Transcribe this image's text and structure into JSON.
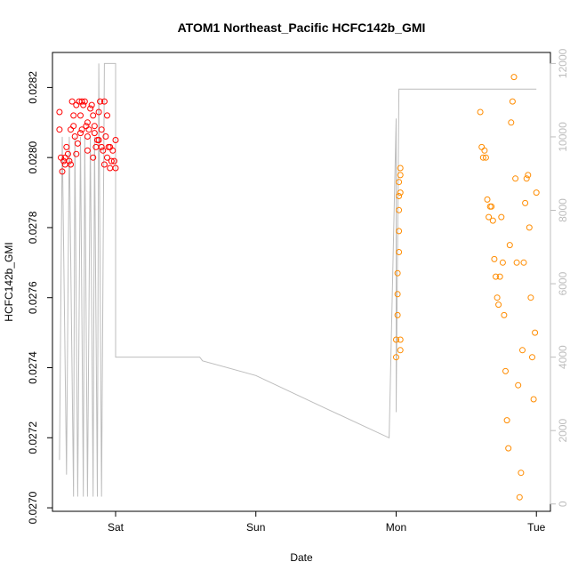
{
  "chart_data": {
    "type": "scatter",
    "title": "ATOM1 Northeast_Pacific HCFC142b_GMI",
    "xlabel": "Date",
    "ylabel": "HCFC142b_GMI",
    "x_ticks": [
      "Sat",
      "Sun",
      "Mon",
      "Tue"
    ],
    "y_ticks": [
      "0.0270",
      "0.0272",
      "0.0274",
      "0.0276",
      "0.0278",
      "0.0280",
      "0.0282"
    ],
    "y_ticks_right": [
      "0",
      "2000",
      "4000",
      "6000",
      "8000",
      "10000",
      "12000"
    ],
    "xlim_days": [
      -0.45,
      3.1
    ],
    "ylim": [
      0.02699,
      0.0283
    ],
    "ylim_right": [
      -200,
      12300
    ],
    "grid": false,
    "colors": {
      "series1": "#ff0000",
      "series2": "#ff8c00",
      "altitude": "#bdbdbd",
      "axis": "#000000"
    },
    "series": [
      {
        "color": "#ff0000",
        "x_days": [
          -0.4,
          -0.39,
          -0.38,
          -0.37,
          -0.36,
          -0.35,
          -0.34,
          -0.33,
          -0.32,
          -0.31,
          -0.3,
          -0.29,
          -0.28,
          -0.27,
          -0.26,
          -0.25,
          -0.24,
          -0.23,
          -0.22,
          -0.21,
          -0.2,
          -0.19,
          -0.18,
          -0.17,
          -0.16,
          -0.15,
          -0.14,
          -0.13,
          -0.12,
          -0.11,
          -0.1,
          -0.09,
          -0.08,
          -0.07,
          -0.06,
          -0.05,
          -0.04,
          -0.03,
          -0.02,
          -0.01,
          0.0,
          -0.4,
          -0.36,
          -0.32,
          -0.28,
          -0.24,
          -0.2,
          -0.16,
          -0.12,
          -0.08,
          -0.04,
          0.0,
          -0.3,
          -0.25,
          -0.2,
          -0.15,
          -0.1,
          -0.06
        ],
        "y": [
          0.02813,
          0.028,
          0.02796,
          0.02799,
          0.02798,
          0.02803,
          0.02801,
          0.02799,
          0.02808,
          0.02816,
          0.02812,
          0.02806,
          0.02801,
          0.02804,
          0.02816,
          0.02812,
          0.02808,
          0.02815,
          0.02816,
          0.02809,
          0.02806,
          0.02808,
          0.02814,
          0.02815,
          0.02812,
          0.02807,
          0.02803,
          0.02805,
          0.02813,
          0.02816,
          0.02808,
          0.02802,
          0.02798,
          0.02806,
          0.02812,
          0.02803,
          0.02797,
          0.02799,
          0.02802,
          0.02799,
          0.02805,
          0.02808,
          0.028,
          0.02798,
          0.02815,
          0.02816,
          0.02802,
          0.028,
          0.02805,
          0.02816,
          0.02803,
          0.02797,
          0.02809,
          0.02807,
          0.0281,
          0.02809,
          0.02803,
          0.028
        ]
      },
      {
        "color": "#ff8c00",
        "x_days": [
          2.0,
          2.0,
          2.01,
          2.01,
          2.01,
          2.02,
          2.02,
          2.02,
          2.02,
          2.02,
          2.03,
          2.03,
          2.03,
          2.03,
          2.03,
          2.6,
          2.61,
          2.62,
          2.63,
          2.64,
          2.65,
          2.66,
          2.67,
          2.68,
          2.69,
          2.7,
          2.71,
          2.72,
          2.73,
          2.74,
          2.75,
          2.76,
          2.77,
          2.78,
          2.79,
          2.8,
          2.81,
          2.82,
          2.83,
          2.84,
          2.85,
          2.86,
          2.87,
          2.88,
          2.89,
          2.9,
          2.91,
          2.92,
          2.93,
          2.94,
          2.95,
          2.96,
          2.97,
          2.98,
          2.99,
          3.0
        ],
        "y": [
          0.02743,
          0.02748,
          0.02755,
          0.02761,
          0.02767,
          0.02773,
          0.02779,
          0.02785,
          0.02789,
          0.02793,
          0.02795,
          0.02797,
          0.0279,
          0.02748,
          0.02745,
          0.02813,
          0.02803,
          0.028,
          0.02802,
          0.028,
          0.02788,
          0.02783,
          0.02786,
          0.02786,
          0.02782,
          0.02771,
          0.02766,
          0.0276,
          0.02758,
          0.02766,
          0.02783,
          0.0277,
          0.02755,
          0.02739,
          0.02725,
          0.02717,
          0.02775,
          0.0281,
          0.02816,
          0.02823,
          0.02794,
          0.0277,
          0.02735,
          0.02703,
          0.0271,
          0.02745,
          0.0277,
          0.02787,
          0.02794,
          0.02795,
          0.0278,
          0.0276,
          0.02743,
          0.02731,
          0.0275,
          0.0279
        ]
      }
    ],
    "altitude_line": {
      "color": "#bdbdbd",
      "x_days": [
        -0.4,
        -0.38,
        -0.35,
        -0.33,
        -0.3,
        -0.29,
        -0.27,
        -0.25,
        -0.23,
        -0.22,
        -0.2,
        -0.18,
        -0.16,
        -0.15,
        -0.13,
        -0.12,
        -0.1,
        -0.08,
        -0.07,
        -0.05,
        -0.04,
        -0.02,
        0.0,
        0.0,
        0.58,
        0.6,
        0.62,
        1.0,
        1.5,
        1.95,
        2.0,
        2.0,
        2.02,
        2.03,
        2.55,
        2.6,
        2.62,
        2.65,
        2.7,
        2.72,
        2.8,
        2.85,
        2.88,
        2.9,
        2.92,
        2.95,
        2.98,
        3.0
      ],
      "y": [
        1200,
        10000,
        800,
        10000,
        200,
        10000,
        200,
        10000,
        200,
        10000,
        200,
        10000,
        200,
        10000,
        200,
        12000,
        200,
        12000,
        12000,
        12000,
        12000,
        12000,
        12000,
        4000,
        4000,
        4000,
        3900,
        3500,
        2600,
        1800,
        10500,
        2500,
        11300,
        11300,
        11300,
        11300,
        11300,
        11300,
        11300,
        11300,
        11300,
        11300,
        11300,
        11300,
        11300,
        11300,
        11300,
        11300
      ]
    }
  }
}
